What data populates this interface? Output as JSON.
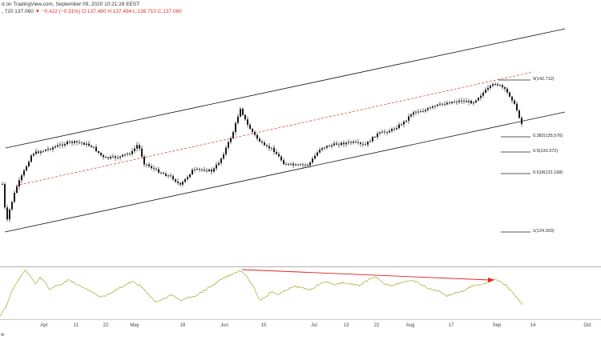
{
  "header": {
    "line1": "d on TradingView.com, September 09, 2020 10:21:28 EEST",
    "line2_prefix": ", 720  137.060  ",
    "change": "▼ −0.422 (−0.31%)",
    "ohlc": "  O:137.480  H:137.494  L:136.710  C:137.060"
  },
  "fib_levels": [
    {
      "label": "0(142.712)"
    },
    {
      "label": "0.382(135.576)"
    },
    {
      "label": "0.5(133.372)"
    },
    {
      "label": "0.618(131.168)"
    },
    {
      "label": "1(124.033)"
    }
  ],
  "x_ticks": [
    "Apr",
    "11",
    "22",
    "May",
    "18",
    "Jun",
    "15",
    "Jul",
    "13",
    "22",
    "Aug",
    "17",
    "Sep",
    "14",
    "Oct"
  ],
  "corner_label": "w",
  "colors": {
    "candle": "#1a1a1a",
    "channel": "#111111",
    "midline": "#e03030",
    "oscillator": "#a8a830",
    "divergence": "#e02020"
  }
}
